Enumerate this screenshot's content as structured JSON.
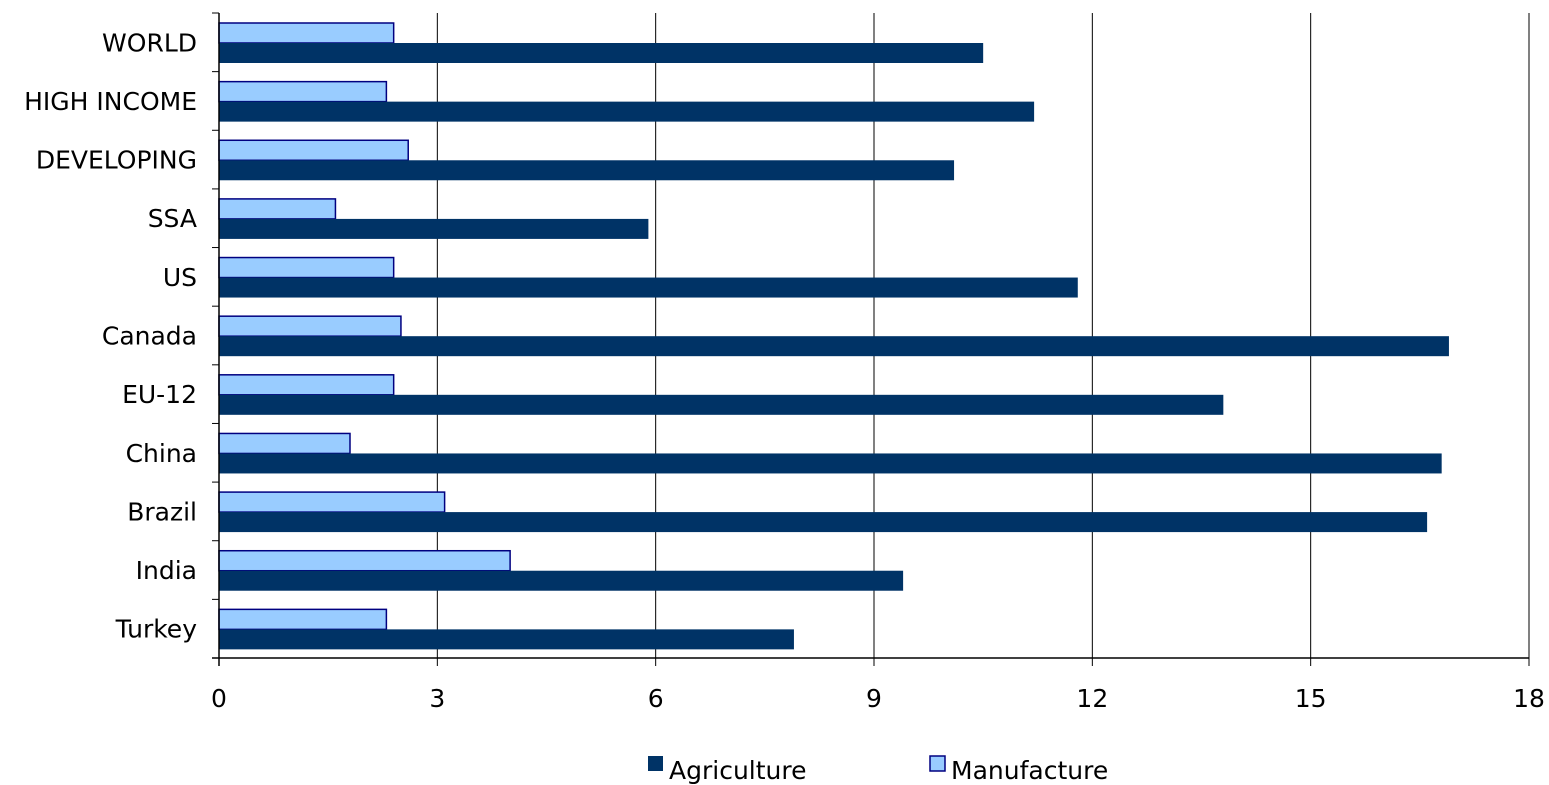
{
  "chart_data": {
    "type": "bar",
    "orientation": "horizontal",
    "categories": [
      "WORLD",
      "HIGH INCOME",
      "DEVELOPING",
      "SSA",
      "US",
      "Canada",
      "EU-12",
      "China",
      "Brazil",
      "India",
      "Turkey"
    ],
    "series": [
      {
        "name": "Agriculture",
        "color": "#003366",
        "values": [
          10.5,
          11.2,
          10.1,
          5.9,
          11.8,
          16.9,
          13.8,
          16.8,
          16.6,
          9.4,
          7.9
        ]
      },
      {
        "name": "Manufacture",
        "color": "#99ccff",
        "values": [
          2.4,
          2.3,
          2.6,
          1.6,
          2.4,
          2.5,
          2.4,
          1.8,
          3.1,
          4.0,
          2.3
        ]
      }
    ],
    "xlim": [
      0,
      18
    ],
    "xticks": [
      "0",
      "3",
      "6",
      "9",
      "12",
      "15",
      "18"
    ],
    "grid": "vertical",
    "legend_position": "bottom",
    "title": "",
    "xlabel": "",
    "ylabel": ""
  }
}
